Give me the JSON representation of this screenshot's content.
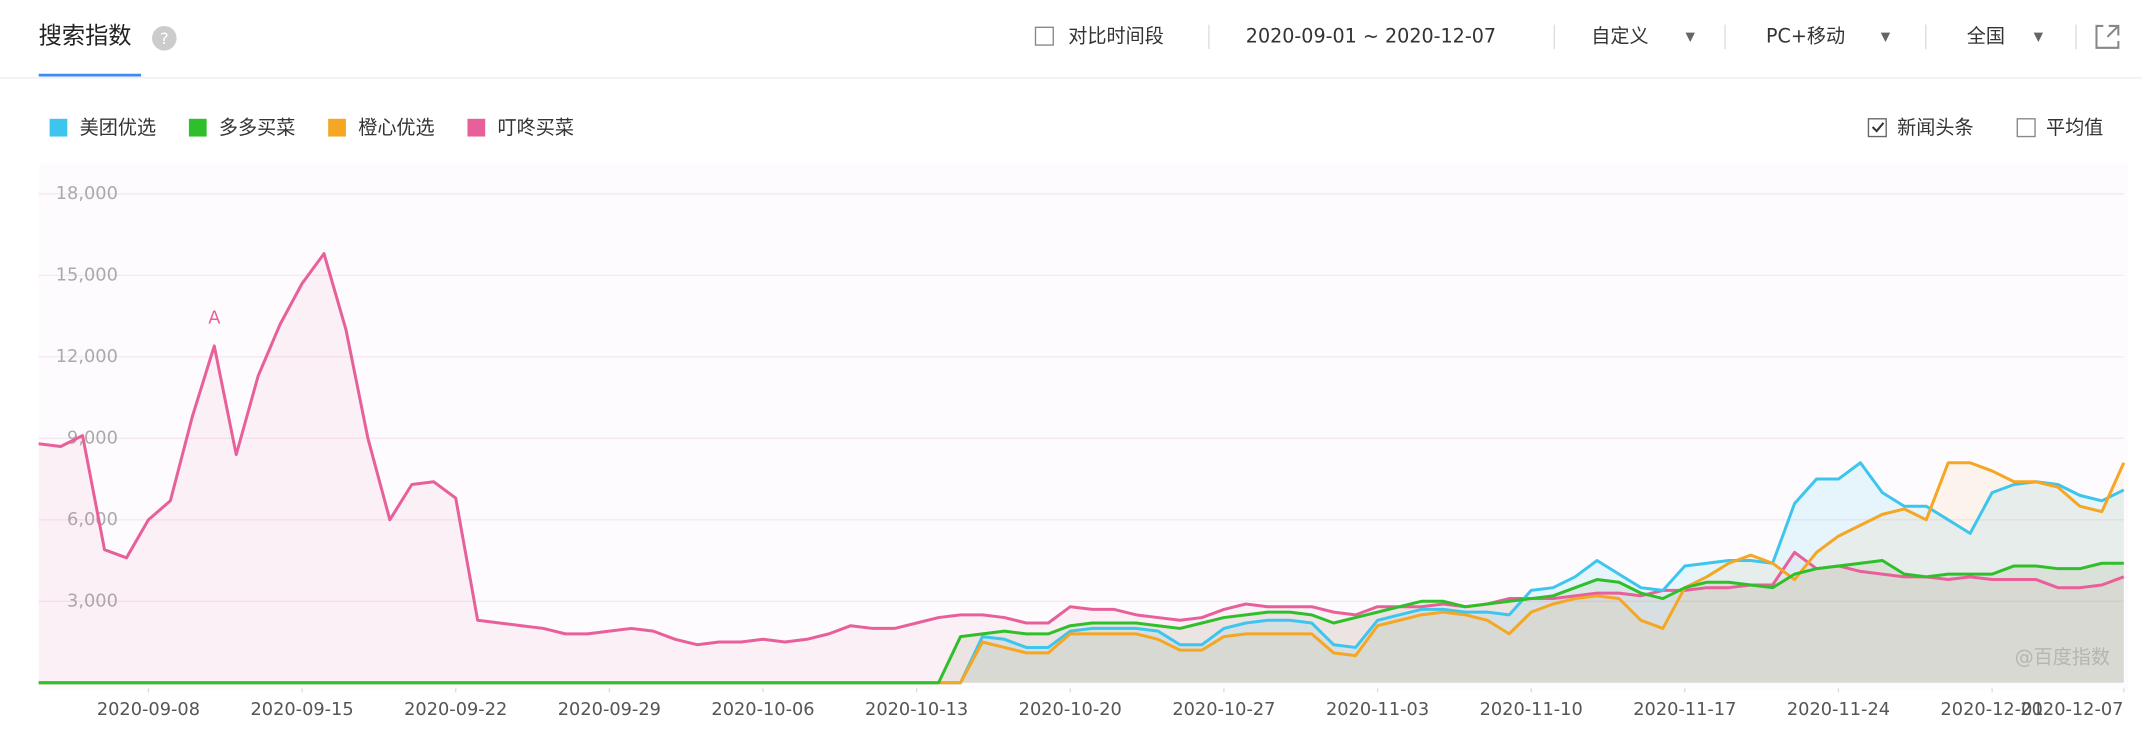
{
  "header": {
    "title": "搜索指数",
    "compare": "对比时间段",
    "date_range": "2020-09-01 ~ 2020-12-07",
    "mode": "自定义",
    "device": "PC+移动",
    "region": "全国",
    "news": "新闻头条",
    "average": "平均值",
    "watermark": "@百度指数"
  },
  "chart_data": {
    "type": "line",
    "x": [
      "2020-09-03",
      "2020-09-04",
      "2020-09-05",
      "2020-09-06",
      "2020-09-07",
      "2020-09-08",
      "2020-09-09",
      "2020-09-10",
      "2020-09-11",
      "2020-09-12",
      "2020-09-13",
      "2020-09-14",
      "2020-09-15",
      "2020-09-16",
      "2020-09-17",
      "2020-09-18",
      "2020-09-19",
      "2020-09-20",
      "2020-09-21",
      "2020-09-22",
      "2020-09-23",
      "2020-09-24",
      "2020-09-25",
      "2020-09-26",
      "2020-09-27",
      "2020-09-28",
      "2020-09-29",
      "2020-09-30",
      "2020-10-01",
      "2020-10-02",
      "2020-10-03",
      "2020-10-04",
      "2020-10-05",
      "2020-10-06",
      "2020-10-07",
      "2020-10-08",
      "2020-10-09",
      "2020-10-10",
      "2020-10-11",
      "2020-10-12",
      "2020-10-13",
      "2020-10-14",
      "2020-10-15",
      "2020-10-16",
      "2020-10-17",
      "2020-10-18",
      "2020-10-19",
      "2020-10-20",
      "2020-10-21",
      "2020-10-22",
      "2020-10-23",
      "2020-10-24",
      "2020-10-25",
      "2020-10-26",
      "2020-10-27",
      "2020-10-28",
      "2020-10-29",
      "2020-10-30",
      "2020-10-31",
      "2020-11-01",
      "2020-11-02",
      "2020-11-03",
      "2020-11-04",
      "2020-11-05",
      "2020-11-06",
      "2020-11-07",
      "2020-11-08",
      "2020-11-09",
      "2020-11-10",
      "2020-11-11",
      "2020-11-12",
      "2020-11-13",
      "2020-11-14",
      "2020-11-15",
      "2020-11-16",
      "2020-11-17",
      "2020-11-18",
      "2020-11-19",
      "2020-11-20",
      "2020-11-21",
      "2020-11-22",
      "2020-11-23",
      "2020-11-24",
      "2020-11-25",
      "2020-11-26",
      "2020-11-27",
      "2020-11-28",
      "2020-11-29",
      "2020-11-30",
      "2020-12-01",
      "2020-12-02",
      "2020-12-03",
      "2020-12-04",
      "2020-12-05",
      "2020-12-06",
      "2020-12-07"
    ],
    "series": [
      {
        "name": "美团优选",
        "color": "#3ec5ee",
        "fill": "rgba(62,197,238,0.12)",
        "values": [
          0,
          0,
          0,
          0,
          0,
          0,
          0,
          0,
          0,
          0,
          0,
          0,
          0,
          0,
          0,
          0,
          0,
          0,
          0,
          0,
          0,
          0,
          0,
          0,
          0,
          0,
          0,
          0,
          0,
          0,
          0,
          0,
          0,
          0,
          0,
          0,
          0,
          0,
          0,
          0,
          0,
          0,
          0,
          1700,
          1600,
          1300,
          1300,
          1900,
          2000,
          2000,
          2000,
          1900,
          1400,
          1400,
          2000,
          2200,
          2300,
          2300,
          2200,
          1400,
          1300,
          2300,
          2500,
          2700,
          2700,
          2600,
          2600,
          2500,
          3400,
          3500,
          3900,
          4500,
          4000,
          3500,
          3400,
          4300,
          4400,
          4500,
          4500,
          4400,
          6600,
          7500,
          7500,
          8100,
          7000,
          6500,
          6500,
          6000,
          5500,
          7000,
          7300,
          7400,
          7300,
          6900,
          6700,
          7100
        ]
      },
      {
        "name": "多多买菜",
        "color": "#2fbf2b",
        "fill": "rgba(110,130,60,0.10)",
        "values": [
          0,
          0,
          0,
          0,
          0,
          0,
          0,
          0,
          0,
          0,
          0,
          0,
          0,
          0,
          0,
          0,
          0,
          0,
          0,
          0,
          0,
          0,
          0,
          0,
          0,
          0,
          0,
          0,
          0,
          0,
          0,
          0,
          0,
          0,
          0,
          0,
          0,
          0,
          0,
          0,
          0,
          0,
          1700,
          1800,
          1900,
          1800,
          1800,
          2100,
          2200,
          2200,
          2200,
          2100,
          2000,
          2200,
          2400,
          2500,
          2600,
          2600,
          2500,
          2200,
          2400,
          2600,
          2800,
          3000,
          3000,
          2800,
          2900,
          3000,
          3100,
          3200,
          3500,
          3800,
          3700,
          3300,
          3100,
          3500,
          3700,
          3700,
          3600,
          3500,
          4000,
          4200,
          4300,
          4400,
          4500,
          4000,
          3900,
          4000,
          4000,
          4000,
          4300,
          4300,
          4200,
          4200,
          4400,
          4400
        ]
      },
      {
        "name": "橙心优选",
        "color": "#f5a623",
        "fill": "rgba(245,166,35,0.08)",
        "values": [
          0,
          0,
          0,
          0,
          0,
          0,
          0,
          0,
          0,
          0,
          0,
          0,
          0,
          0,
          0,
          0,
          0,
          0,
          0,
          0,
          0,
          0,
          0,
          0,
          0,
          0,
          0,
          0,
          0,
          0,
          0,
          0,
          0,
          0,
          0,
          0,
          0,
          0,
          0,
          0,
          0,
          0,
          0,
          1500,
          1300,
          1100,
          1100,
          1800,
          1800,
          1800,
          1800,
          1600,
          1200,
          1200,
          1700,
          1800,
          1800,
          1800,
          1800,
          1100,
          1000,
          2100,
          2300,
          2500,
          2600,
          2500,
          2300,
          1800,
          2600,
          2900,
          3100,
          3200,
          3100,
          2300,
          2000,
          3500,
          3900,
          4400,
          4700,
          4400,
          3800,
          4800,
          5400,
          5800,
          6200,
          6400,
          6000,
          8100,
          8100,
          7800,
          7400,
          7400,
          7200,
          6500,
          6300,
          8100
        ]
      },
      {
        "name": "叮咚买菜",
        "color": "#e8609a",
        "fill": "rgba(232,96,154,0.07)",
        "values": [
          8800,
          8700,
          9100,
          4900,
          4600,
          6000,
          6700,
          9800,
          12400,
          8400,
          11300,
          13200,
          14700,
          15800,
          13000,
          9000,
          6000,
          7300,
          7400,
          6800,
          2300,
          2200,
          2100,
          2000,
          1800,
          1800,
          1900,
          2000,
          1900,
          1600,
          1400,
          1500,
          1500,
          1600,
          1500,
          1600,
          1800,
          2100,
          2000,
          2000,
          2200,
          2400,
          2500,
          2500,
          2400,
          2200,
          2200,
          2800,
          2700,
          2700,
          2500,
          2400,
          2300,
          2400,
          2700,
          2900,
          2800,
          2800,
          2800,
          2600,
          2500,
          2800,
          2800,
          2800,
          2900,
          2800,
          2900,
          3100,
          3100,
          3100,
          3200,
          3300,
          3300,
          3200,
          3400,
          3400,
          3500,
          3500,
          3600,
          3600,
          4800,
          4200,
          4300,
          4100,
          4000,
          3900,
          3900,
          3800,
          3900,
          3800,
          3800,
          3800,
          3500,
          3500,
          3600,
          3900
        ]
      }
    ],
    "xlim": [
      "2020-09-03",
      "2020-12-07"
    ],
    "xticks": [
      "2020-09-08",
      "2020-09-15",
      "2020-09-22",
      "2020-09-29",
      "2020-10-06",
      "2020-10-13",
      "2020-10-20",
      "2020-10-27",
      "2020-11-03",
      "2020-11-10",
      "2020-11-17",
      "2020-11-24",
      "2020-12-01",
      "2020-12-07"
    ],
    "ylim": [
      0,
      18000
    ],
    "yticks": [
      {
        "value": 3000,
        "label": "3,000"
      },
      {
        "value": 6000,
        "label": "6,000"
      },
      {
        "value": 9000,
        "label": "9,000"
      },
      {
        "value": 12000,
        "label": "12,000"
      },
      {
        "value": 15000,
        "label": "15,000"
      },
      {
        "value": 18000,
        "label": "18,000"
      }
    ],
    "grid": true,
    "annotations": [
      {
        "x": "2020-09-11",
        "series": 3,
        "label": "A"
      }
    ]
  }
}
